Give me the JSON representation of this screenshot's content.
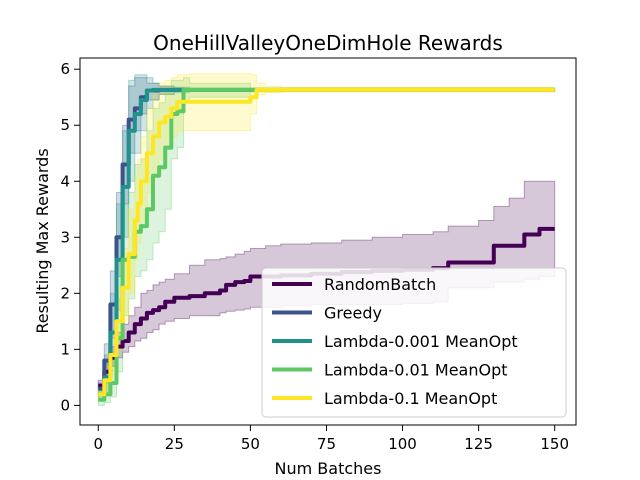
{
  "chart_data": {
    "type": "line",
    "title": "OneHillValleyOneDimHole Rewards",
    "xlabel": "Num Batches",
    "ylabel": "Resulting Max Rewards",
    "xlim": [
      -6,
      157
    ],
    "ylim": [
      -0.35,
      6.2
    ],
    "xticks": [
      0,
      25,
      50,
      75,
      100,
      125,
      150
    ],
    "yticks": [
      0,
      1,
      2,
      3,
      4,
      5,
      6
    ],
    "legend_position": "lower-right",
    "series": [
      {
        "name": "RandomBatch",
        "color": "#440154",
        "x": [
          0,
          2,
          4,
          6,
          8,
          10,
          12,
          14,
          16,
          18,
          20,
          22,
          25,
          30,
          35,
          40,
          42,
          45,
          48,
          50,
          55,
          60,
          70,
          80,
          90,
          100,
          110,
          115,
          125,
          130,
          135,
          140,
          145,
          150
        ],
        "y": [
          0.35,
          0.6,
          0.85,
          1.05,
          1.15,
          1.3,
          1.45,
          1.55,
          1.65,
          1.7,
          1.75,
          1.85,
          1.92,
          1.95,
          2.0,
          2.05,
          2.15,
          2.2,
          2.22,
          2.3,
          2.3,
          2.32,
          2.35,
          2.38,
          2.4,
          2.42,
          2.45,
          2.55,
          2.55,
          2.85,
          2.85,
          3.05,
          3.15,
          3.15
        ],
        "lower": [
          0.3,
          0.5,
          0.7,
          0.85,
          0.95,
          1.05,
          1.15,
          1.2,
          1.3,
          1.35,
          1.45,
          1.5,
          1.55,
          1.6,
          1.6,
          1.65,
          1.68,
          1.7,
          1.72,
          1.75,
          1.75,
          1.78,
          1.8,
          1.8,
          1.8,
          1.82,
          1.85,
          2.1,
          2.1,
          2.2,
          2.2,
          2.25,
          2.3,
          2.3
        ],
        "upper": [
          0.45,
          0.8,
          1.05,
          1.3,
          1.45,
          1.6,
          1.75,
          2.0,
          2.05,
          2.15,
          2.2,
          2.25,
          2.35,
          2.5,
          2.6,
          2.62,
          2.65,
          2.7,
          2.75,
          2.8,
          2.85,
          2.88,
          2.9,
          2.95,
          3.0,
          3.05,
          3.1,
          3.2,
          3.3,
          3.55,
          3.7,
          4.0,
          4.0,
          4.0
        ]
      },
      {
        "name": "Greedy",
        "color": "#3b528b",
        "x": [
          0,
          2,
          4,
          6,
          8,
          10,
          12,
          14,
          16,
          20,
          25,
          28
        ],
        "y": [
          0.3,
          0.8,
          1.8,
          3.0,
          4.3,
          5.1,
          5.3,
          5.5,
          5.62,
          5.63,
          5.63,
          5.63
        ],
        "lower": [
          0.2,
          0.4,
          1.2,
          2.3,
          3.6,
          4.5,
          4.9,
          5.2,
          5.45,
          5.55,
          5.6,
          5.6
        ],
        "upper": [
          0.4,
          1.1,
          2.4,
          3.8,
          5.0,
          5.7,
          5.85,
          5.85,
          5.75,
          5.7,
          5.66,
          5.66
        ]
      },
      {
        "name": "Lambda-0.001 MeanOpt",
        "color": "#21918c",
        "x": [
          0,
          2,
          4,
          6,
          8,
          10,
          12,
          14,
          16,
          18,
          20,
          25,
          30,
          50,
          150
        ],
        "y": [
          0.2,
          0.5,
          1.3,
          2.6,
          3.9,
          4.9,
          5.2,
          5.45,
          5.62,
          5.63,
          5.63,
          5.63,
          5.63,
          5.63,
          5.63
        ],
        "lower": [
          0.1,
          0.25,
          0.7,
          1.7,
          3.0,
          4.0,
          4.5,
          4.9,
          5.3,
          5.45,
          5.55,
          5.58,
          5.6,
          5.6,
          5.6
        ],
        "upper": [
          0.35,
          0.9,
          2.0,
          3.6,
          4.9,
          5.8,
          5.9,
          5.9,
          5.85,
          5.75,
          5.7,
          5.68,
          5.66,
          5.66,
          5.66
        ]
      },
      {
        "name": "Lambda-0.01 MeanOpt",
        "color": "#5ec962",
        "x": [
          0,
          2,
          4,
          6,
          8,
          10,
          12,
          14,
          16,
          18,
          20,
          22,
          24,
          26,
          28,
          30,
          50,
          150
        ],
        "y": [
          0.1,
          0.2,
          0.4,
          1.2,
          2.6,
          2.65,
          3.1,
          3.2,
          3.5,
          4.1,
          4.25,
          4.6,
          5.2,
          5.25,
          5.63,
          5.63,
          5.63,
          5.63
        ],
        "lower": [
          0.0,
          0.05,
          0.15,
          0.6,
          1.6,
          1.9,
          2.3,
          2.4,
          2.6,
          2.9,
          3.1,
          3.5,
          4.4,
          4.6,
          5.4,
          5.5,
          5.6,
          5.6
        ],
        "upper": [
          0.25,
          0.5,
          0.9,
          1.9,
          3.6,
          3.8,
          4.3,
          4.4,
          4.9,
          5.3,
          5.4,
          5.6,
          5.8,
          5.8,
          5.85,
          5.75,
          5.66,
          5.66
        ]
      },
      {
        "name": "Lambda-0.1 MeanOpt",
        "color": "#fde725",
        "x": [
          0,
          2,
          4,
          6,
          8,
          10,
          12,
          13,
          14,
          16,
          18,
          20,
          22,
          24,
          26,
          30,
          35,
          40,
          45,
          50,
          52,
          55,
          60,
          150
        ],
        "y": [
          0.2,
          0.45,
          0.9,
          1.5,
          2.1,
          2.7,
          3.3,
          3.6,
          4.0,
          4.5,
          4.8,
          5.05,
          5.15,
          5.3,
          5.42,
          5.42,
          5.42,
          5.42,
          5.42,
          5.5,
          5.63,
          5.63,
          5.63,
          5.63
        ],
        "lower": [
          0.1,
          0.25,
          0.55,
          1.0,
          1.5,
          2.0,
          2.6,
          2.9,
          3.3,
          3.8,
          4.1,
          4.4,
          4.6,
          4.8,
          4.9,
          4.9,
          4.9,
          4.9,
          4.9,
          5.2,
          5.55,
          5.58,
          5.6,
          5.6
        ],
        "upper": [
          0.3,
          0.7,
          1.3,
          2.1,
          2.8,
          3.5,
          4.1,
          4.4,
          4.8,
          5.3,
          5.6,
          5.75,
          5.8,
          5.85,
          5.9,
          5.92,
          5.92,
          5.92,
          5.92,
          5.9,
          5.75,
          5.7,
          5.68,
          5.66
        ]
      }
    ]
  }
}
